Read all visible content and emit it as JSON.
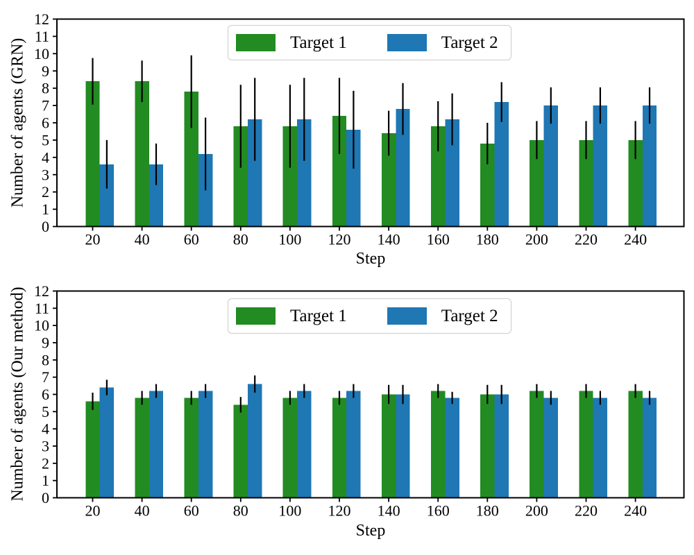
{
  "figure": {
    "background": "#ffffff",
    "text_color": "#000000",
    "axis_color": "#000000"
  },
  "chart_data": [
    {
      "type": "bar",
      "title": "",
      "xlabel": "Step",
      "ylabel": "Number of agents (GRN)",
      "categories": [
        20,
        40,
        60,
        80,
        100,
        120,
        140,
        160,
        180,
        200,
        220,
        240
      ],
      "ylim": [
        0,
        12
      ],
      "yticks": [
        0,
        1,
        2,
        3,
        4,
        5,
        6,
        7,
        8,
        9,
        10,
        11,
        12
      ],
      "grid": false,
      "legend_position": "upper center",
      "error_bar_color": "#000000",
      "series": [
        {
          "name": "Target 1",
          "color": "#228B22",
          "values": [
            8.4,
            8.4,
            7.8,
            5.8,
            5.8,
            6.4,
            5.4,
            5.8,
            4.8,
            5.0,
            5.0,
            5.0
          ],
          "errors": [
            1.35,
            1.2,
            2.1,
            2.4,
            2.4,
            2.2,
            1.3,
            1.45,
            1.2,
            1.1,
            1.1,
            1.1
          ]
        },
        {
          "name": "Target 2",
          "color": "#1F77B4",
          "values": [
            3.6,
            3.6,
            4.2,
            6.2,
            6.2,
            5.6,
            6.8,
            6.2,
            7.2,
            7.0,
            7.0,
            7.0
          ],
          "errors": [
            1.4,
            1.2,
            2.1,
            2.4,
            2.4,
            2.25,
            1.5,
            1.5,
            1.15,
            1.05,
            1.05,
            1.05
          ]
        }
      ]
    },
    {
      "type": "bar",
      "title": "",
      "xlabel": "Step",
      "ylabel": "Number of agents (Our method)",
      "categories": [
        20,
        40,
        60,
        80,
        100,
        120,
        140,
        160,
        180,
        200,
        220,
        240
      ],
      "ylim": [
        0,
        12
      ],
      "yticks": [
        0,
        1,
        2,
        3,
        4,
        5,
        6,
        7,
        8,
        9,
        10,
        11,
        12
      ],
      "grid": false,
      "legend_position": "upper center",
      "error_bar_color": "#000000",
      "series": [
        {
          "name": "Target 1",
          "color": "#228B22",
          "values": [
            5.6,
            5.8,
            5.8,
            5.4,
            5.8,
            5.8,
            6.0,
            6.2,
            6.0,
            6.2,
            6.2,
            6.2
          ],
          "errors": [
            0.5,
            0.4,
            0.4,
            0.45,
            0.4,
            0.4,
            0.55,
            0.4,
            0.55,
            0.4,
            0.4,
            0.4
          ]
        },
        {
          "name": "Target 2",
          "color": "#1F77B4",
          "values": [
            6.4,
            6.2,
            6.2,
            6.6,
            6.2,
            6.2,
            6.0,
            5.8,
            6.0,
            5.8,
            5.8,
            5.8
          ],
          "errors": [
            0.45,
            0.4,
            0.4,
            0.5,
            0.4,
            0.4,
            0.55,
            0.35,
            0.55,
            0.4,
            0.4,
            0.4
          ]
        }
      ]
    }
  ]
}
